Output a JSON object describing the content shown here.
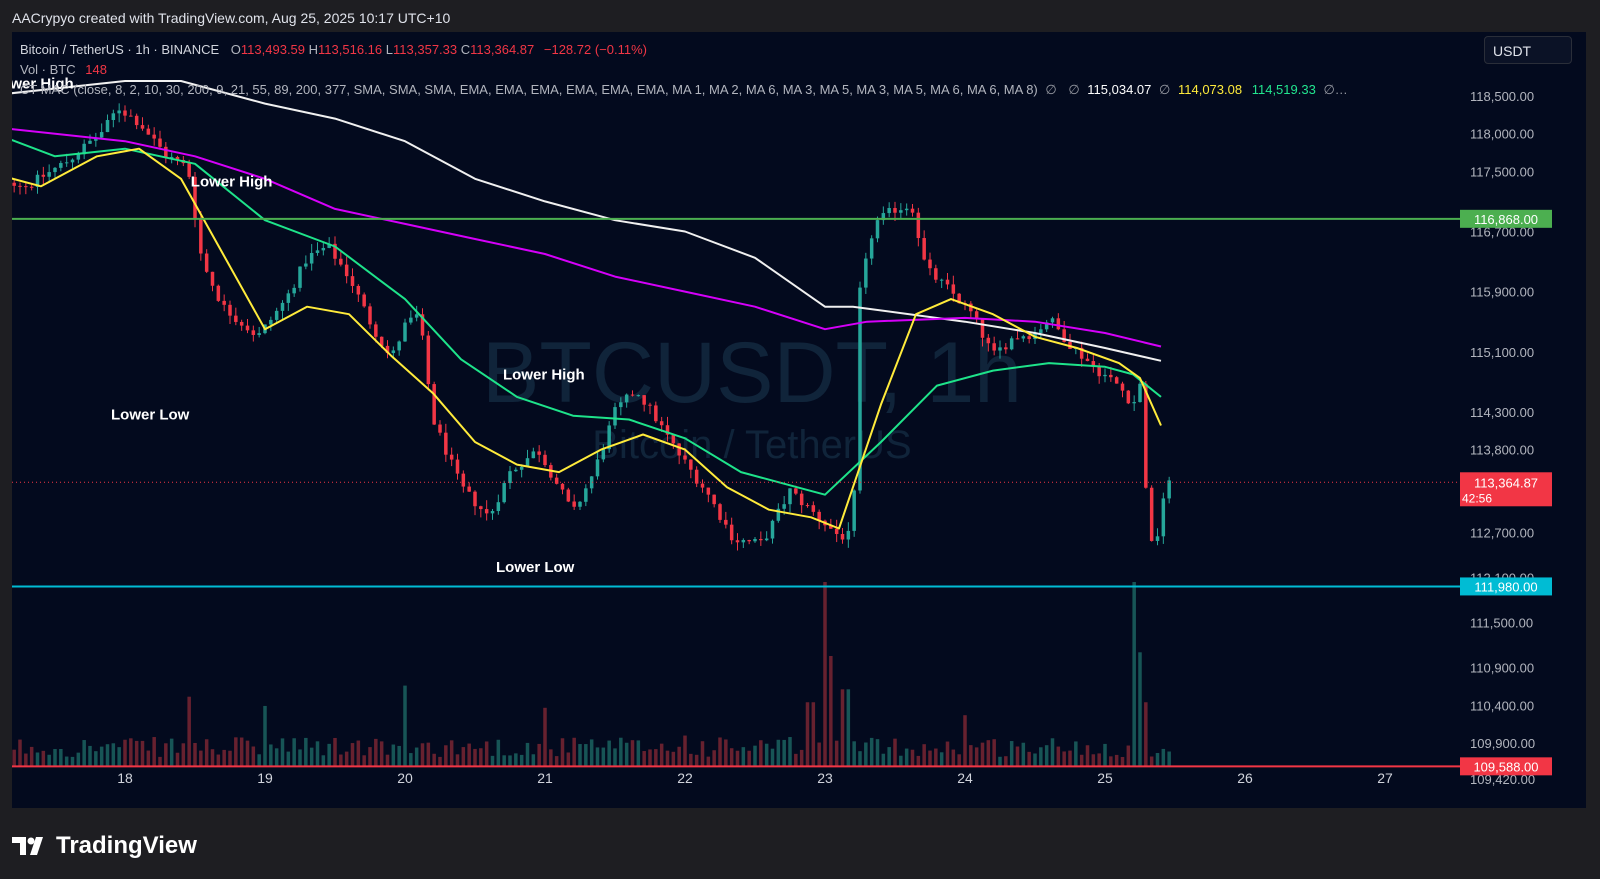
{
  "header": {
    "credit": "AACrypyo created with TradingView.com, Aug 25, 2025 10:17 UTC+10"
  },
  "legend": {
    "symbol": "Bitcoin / TetherUS · 1h · BINANCE",
    "o_label": "O",
    "o_value": "113,493.59",
    "h_label": "H",
    "h_value": "113,516.16",
    "l_label": "L",
    "l_value": "113,357.33",
    "c_label": "C",
    "c_value": "113,364.87",
    "change": "−128.72 (−0.11%)",
    "vol_label": "Vol · BTC",
    "vol_value": "148",
    "indicator": "CT MAC (close, 8, 2, 10, 30, 200, 9, 21, 55, 89, 200, 377, SMA, SMA, SMA, EMA, EMA, EMA, EMA, EMA, EMA, MA 1, MA 2, MA 6, MA 3, MA 5, MA 3, MA 5, MA 6, MA 6, MA 8)",
    "null1": "∅",
    "null2": "∅",
    "ma_white": "115,034.07",
    "null3": "∅",
    "ma_yellow": "114,073.08",
    "ma_green": "114,519.33",
    "null4": "∅…"
  },
  "currency_button": "USDT",
  "watermark": {
    "main": "BTCUSDT, 1h",
    "sub": "Bitcoin / TetherUS"
  },
  "footer": {
    "logo_text": "TradingView"
  },
  "colors": {
    "background": "#030a1e",
    "up": "#26a69a",
    "down": "#f23645",
    "ma_white": "#f0f0f0",
    "ma_magenta": "#d500f9",
    "ma_green": "#1ee38a",
    "ma_yellow": "#ffeb3b",
    "resistance": "#4caf50",
    "support": "#00bcd4",
    "volume_level": "#f23645"
  },
  "chart_data": {
    "type": "candlestick",
    "timeframe": "1h",
    "x_ticks": [
      "18",
      "19",
      "20",
      "21",
      "22",
      "23",
      "24",
      "25",
      "26",
      "27"
    ],
    "y_ticks": [
      "118,500.00",
      "118,000.00",
      "117,500.00",
      "116,700.00",
      "115,900.00",
      "115,100.00",
      "114,300.00",
      "113,800.00",
      "112,700.00",
      "112,100.00",
      "111,500.00",
      "110,900.00",
      "110,400.00",
      "109,900.00",
      "109,420.00"
    ],
    "ylim": [
      109300,
      118900
    ],
    "horizontal_levels": [
      {
        "value": 116868.0,
        "label": "116,868.00",
        "color": "#4caf50"
      },
      {
        "value": 111980.0,
        "label": "111,980.00",
        "color": "#00bcd4"
      },
      {
        "value": 109588.0,
        "label": "109,588.00",
        "color": "#f23645"
      }
    ],
    "last_price": {
      "value": 113364.87,
      "label": "113,364.87",
      "countdown": "42:56"
    },
    "annotations": [
      {
        "text": "Lower High",
        "day": 17.05,
        "price": 118600
      },
      {
        "text": "Lower High",
        "day": 18.47,
        "price": 117300
      },
      {
        "text": "Lower Low",
        "day": 17.9,
        "price": 114200
      },
      {
        "text": "Lower High",
        "day": 20.7,
        "price": 114730
      },
      {
        "text": "Lower Low",
        "day": 20.65,
        "price": 112170
      }
    ],
    "price_path": [
      [
        17.0,
        117500
      ],
      [
        17.3,
        117300
      ],
      [
        17.6,
        117650
      ],
      [
        17.85,
        118050
      ],
      [
        17.95,
        118350
      ],
      [
        18.1,
        118150
      ],
      [
        18.3,
        117700
      ],
      [
        18.45,
        117550
      ],
      [
        18.55,
        116300
      ],
      [
        18.7,
        115700
      ],
      [
        18.95,
        115300
      ],
      [
        19.15,
        115800
      ],
      [
        19.3,
        116350
      ],
      [
        19.45,
        116500
      ],
      [
        19.6,
        116100
      ],
      [
        19.75,
        115500
      ],
      [
        19.9,
        115000
      ],
      [
        20.0,
        115450
      ],
      [
        20.1,
        115600
      ],
      [
        20.2,
        114200
      ],
      [
        20.4,
        113300
      ],
      [
        20.6,
        112900
      ],
      [
        20.75,
        113500
      ],
      [
        20.95,
        113800
      ],
      [
        21.1,
        113300
      ],
      [
        21.2,
        112950
      ],
      [
        21.35,
        113500
      ],
      [
        21.5,
        114300
      ],
      [
        21.65,
        114600
      ],
      [
        21.78,
        114250
      ],
      [
        21.95,
        113750
      ],
      [
        22.15,
        113250
      ],
      [
        22.35,
        112600
      ],
      [
        22.55,
        112550
      ],
      [
        22.75,
        113250
      ],
      [
        22.95,
        112900
      ],
      [
        23.1,
        112650
      ],
      [
        23.2,
        112650
      ],
      [
        23.25,
        115900
      ],
      [
        23.35,
        116800
      ],
      [
        23.5,
        117000
      ],
      [
        23.62,
        117050
      ],
      [
        23.72,
        116200
      ],
      [
        23.9,
        115900
      ],
      [
        24.05,
        115600
      ],
      [
        24.2,
        115050
      ],
      [
        24.35,
        115300
      ],
      [
        24.5,
        115350
      ],
      [
        24.6,
        115550
      ],
      [
        24.75,
        115200
      ],
      [
        24.95,
        114850
      ],
      [
        25.1,
        114650
      ],
      [
        25.2,
        114400
      ],
      [
        25.26,
        114700
      ],
      [
        25.31,
        112550
      ],
      [
        25.36,
        112500
      ],
      [
        25.42,
        113200
      ],
      [
        25.47,
        113365
      ]
    ],
    "volume_spikes": [
      [
        18.45,
        0.38
      ],
      [
        19.0,
        0.33
      ],
      [
        20.0,
        0.44
      ],
      [
        21.0,
        0.32
      ],
      [
        22.0,
        0.17
      ],
      [
        22.9,
        0.35
      ],
      [
        23.0,
        1.0
      ],
      [
        23.05,
        0.6
      ],
      [
        23.15,
        0.42
      ],
      [
        24.0,
        0.28
      ],
      [
        25.2,
        1.0
      ],
      [
        25.24,
        0.62
      ],
      [
        25.3,
        0.35
      ]
    ],
    "moving_averages": [
      {
        "name": "ma_white",
        "color": "#f0f0f0",
        "points": [
          [
            17,
            118500
          ],
          [
            18,
            118700
          ],
          [
            18.4,
            118700
          ],
          [
            19,
            118400
          ],
          [
            19.5,
            118200
          ],
          [
            20,
            117900
          ],
          [
            20.5,
            117400
          ],
          [
            21,
            117100
          ],
          [
            21.5,
            116850
          ],
          [
            22,
            116700
          ],
          [
            22.5,
            116350
          ],
          [
            23,
            115700
          ],
          [
            23.2,
            115700
          ],
          [
            24,
            115500
          ],
          [
            24.5,
            115350
          ],
          [
            25,
            115150
          ],
          [
            25.4,
            114980
          ]
        ]
      },
      {
        "name": "ma_magenta",
        "color": "#d500f9",
        "points": [
          [
            17,
            118100
          ],
          [
            18,
            117900
          ],
          [
            18.5,
            117700
          ],
          [
            19,
            117400
          ],
          [
            19.5,
            117000
          ],
          [
            20,
            116800
          ],
          [
            20.5,
            116600
          ],
          [
            21,
            116400
          ],
          [
            21.5,
            116100
          ],
          [
            22,
            115900
          ],
          [
            22.5,
            115700
          ],
          [
            23,
            115400
          ],
          [
            23.3,
            115500
          ],
          [
            24,
            115550
          ],
          [
            24.5,
            115500
          ],
          [
            25,
            115350
          ],
          [
            25.4,
            115170
          ]
        ]
      },
      {
        "name": "ma_green",
        "color": "#1ee38a",
        "points": [
          [
            17,
            118050
          ],
          [
            17.5,
            117700
          ],
          [
            18,
            117800
          ],
          [
            18.5,
            117600
          ],
          [
            19,
            116850
          ],
          [
            19.5,
            116500
          ],
          [
            20,
            115800
          ],
          [
            20.4,
            115000
          ],
          [
            20.8,
            114500
          ],
          [
            21.2,
            114250
          ],
          [
            21.6,
            114200
          ],
          [
            22,
            113950
          ],
          [
            22.4,
            113500
          ],
          [
            22.8,
            113300
          ],
          [
            23,
            113200
          ],
          [
            23.4,
            113900
          ],
          [
            23.8,
            114650
          ],
          [
            24.2,
            114850
          ],
          [
            24.6,
            114950
          ],
          [
            25,
            114900
          ],
          [
            25.2,
            114800
          ],
          [
            25.4,
            114500
          ]
        ]
      },
      {
        "name": "ma_yellow",
        "color": "#ffeb3b",
        "points": [
          [
            17,
            117500
          ],
          [
            17.4,
            117300
          ],
          [
            17.8,
            117700
          ],
          [
            18.1,
            117800
          ],
          [
            18.4,
            117400
          ],
          [
            18.7,
            116400
          ],
          [
            19.0,
            115400
          ],
          [
            19.3,
            115700
          ],
          [
            19.6,
            115600
          ],
          [
            19.9,
            115050
          ],
          [
            20.2,
            114550
          ],
          [
            20.5,
            113900
          ],
          [
            20.8,
            113600
          ],
          [
            21.1,
            113500
          ],
          [
            21.4,
            113800
          ],
          [
            21.7,
            114000
          ],
          [
            22.0,
            113800
          ],
          [
            22.3,
            113300
          ],
          [
            22.6,
            113000
          ],
          [
            22.9,
            112900
          ],
          [
            23.1,
            112750
          ],
          [
            23.4,
            114400
          ],
          [
            23.65,
            115600
          ],
          [
            23.9,
            115800
          ],
          [
            24.2,
            115600
          ],
          [
            24.5,
            115300
          ],
          [
            24.8,
            115150
          ],
          [
            25.1,
            114950
          ],
          [
            25.25,
            114750
          ],
          [
            25.4,
            114120
          ]
        ]
      }
    ]
  }
}
